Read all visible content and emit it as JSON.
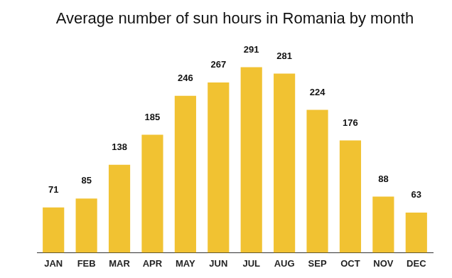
{
  "chart_data": {
    "type": "bar",
    "title": "Average number of sun hours in Romania by month",
    "categories": [
      "JAN",
      "FEB",
      "MAR",
      "APR",
      "MAY",
      "JUN",
      "JUL",
      "AUG",
      "SEP",
      "OCT",
      "NOV",
      "DEC"
    ],
    "values": [
      71,
      85,
      138,
      185,
      246,
      267,
      291,
      281,
      224,
      176,
      88,
      63
    ],
    "color": "#f1c232",
    "ylim": [
      0,
      300
    ],
    "grid": false,
    "data_labels": true,
    "tick_labels": "x"
  }
}
